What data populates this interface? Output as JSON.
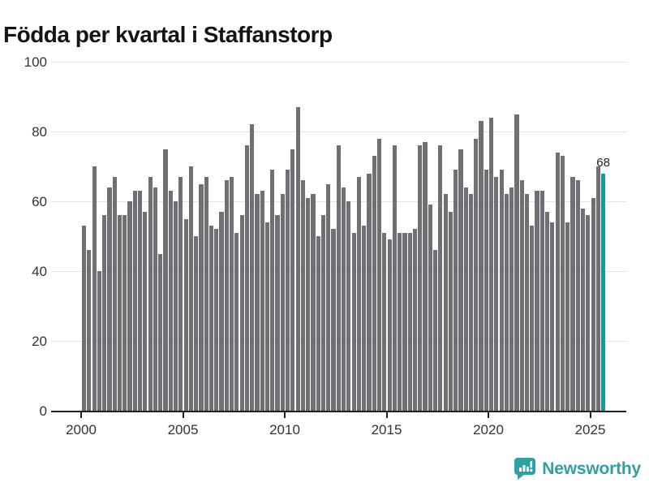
{
  "title": "Födda per kvartal i Staffanstorp",
  "chart_data": {
    "type": "bar",
    "title": "Födda per kvartal i Staffanstorp",
    "period": "quarterly",
    "start": "2000-Q1",
    "end": "2025-Q3",
    "categories_note": "103 consecutive quarters from 2000 Q1 to 2025 Q3",
    "values": [
      53,
      46,
      70,
      40,
      56,
      64,
      67,
      56,
      56,
      60,
      63,
      63,
      57,
      67,
      64,
      45,
      75,
      63,
      60,
      67,
      55,
      70,
      50,
      65,
      67,
      53,
      52,
      57,
      66,
      67,
      51,
      56,
      76,
      82,
      62,
      63,
      54,
      69,
      56,
      62,
      69,
      75,
      87,
      66,
      61,
      62,
      50,
      56,
      65,
      52,
      76,
      64,
      60,
      51,
      67,
      53,
      68,
      73,
      78,
      51,
      49,
      76,
      51,
      51,
      51,
      52,
      76,
      77,
      59,
      46,
      76,
      62,
      57,
      69,
      75,
      64,
      62,
      78,
      83,
      69,
      84,
      67,
      69,
      62,
      64,
      85,
      66,
      62,
      53,
      63,
      63,
      57,
      54,
      74,
      73,
      54,
      67,
      66,
      58,
      56,
      61,
      70,
      68
    ],
    "highlight": {
      "index": 102,
      "label": "68",
      "quarter": "2025-Q3"
    },
    "ylim": [
      0,
      100
    ],
    "yticks": [
      0,
      20,
      40,
      60,
      80,
      100
    ],
    "xticks": [
      2000,
      2005,
      2010,
      2015,
      2020,
      2025
    ],
    "grid": true,
    "legend": "none",
    "bar_color": "#6F6F74",
    "highlight_color": "#00A2A2",
    "axis_color": "#222222",
    "gridline_color": "#e4e4e4",
    "label_color": "#333333"
  },
  "footer": {
    "brand": "Newsworthy",
    "brand_color": "#2FA19F"
  }
}
